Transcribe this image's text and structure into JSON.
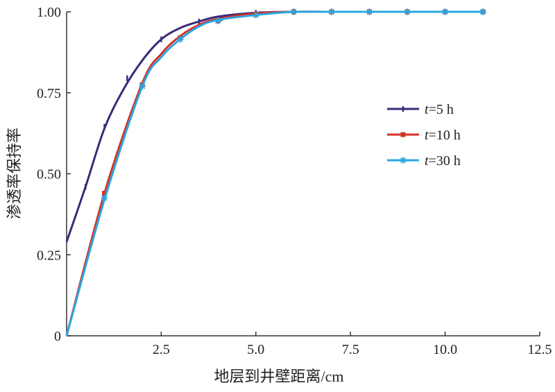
{
  "chart_data": {
    "type": "line",
    "title": "",
    "xlabel": "地层到井壁距离/cm",
    "ylabel": "渗透率保持率",
    "xlim": [
      0,
      12.5
    ],
    "ylim": [
      0,
      1.0
    ],
    "x_ticks": [
      "2.5",
      "5.0",
      "7.5",
      "10.0",
      "12.5"
    ],
    "y_ticks": [
      "0",
      "0.25",
      "0.50",
      "0.75",
      "1.00"
    ],
    "grid": false,
    "legend_position": "center-right",
    "series": [
      {
        "name_prefix": "t",
        "name_value": "=5 h",
        "color": "#3b2a7a",
        "marker": "tick",
        "x": [
          0,
          0.5,
          1.0,
          1.5,
          2.0,
          2.5,
          3.0,
          3.5,
          4.0,
          5.0,
          6.0
        ],
        "y": [
          0.29,
          0.46,
          0.64,
          0.76,
          0.85,
          0.915,
          0.95,
          0.97,
          0.985,
          0.997,
          1.0
        ],
        "markers_x": [
          0.5,
          1.0,
          1.6,
          2.5,
          3.5,
          4.1,
          5.0,
          6.0
        ],
        "markers_y": [
          0.46,
          0.645,
          0.795,
          0.915,
          0.97,
          0.98,
          0.997,
          1.0
        ]
      },
      {
        "name_prefix": "t",
        "name_value": "=10 h",
        "color": "#d73027",
        "marker": "square",
        "x": [
          0,
          1.0,
          2.0,
          2.5,
          3.0,
          3.5,
          4.0,
          5.0,
          6.0,
          7.0,
          8.0,
          9.0,
          10.0,
          11.0
        ],
        "y": [
          0.0,
          0.44,
          0.78,
          0.87,
          0.925,
          0.96,
          0.978,
          0.995,
          1.0,
          1.0,
          1.0,
          1.0,
          1.0,
          1.0
        ],
        "markers_x": [
          1.0,
          2.0,
          3.0,
          4.0,
          5.0,
          6.0,
          7.0,
          8.0,
          9.0,
          10.0,
          11.0
        ],
        "markers_y": [
          0.44,
          0.775,
          0.92,
          0.972,
          0.992,
          1.0,
          1.0,
          1.0,
          1.0,
          1.0,
          1.0
        ]
      },
      {
        "name_prefix": "t",
        "name_value": "=30 h",
        "color": "#2ba6e0",
        "marker": "star",
        "x": [
          0,
          1.0,
          2.0,
          2.5,
          3.0,
          3.5,
          4.0,
          5.0,
          6.0,
          7.0,
          8.0,
          9.0,
          10.0,
          11.0
        ],
        "y": [
          0.0,
          0.42,
          0.77,
          0.86,
          0.915,
          0.955,
          0.975,
          0.99,
          1.0,
          1.0,
          1.0,
          1.0,
          1.0,
          1.0
        ],
        "markers_x": [
          1.0,
          2.0,
          3.0,
          4.0,
          5.0,
          6.0,
          7.0,
          8.0,
          9.0,
          10.0,
          11.0
        ],
        "markers_y": [
          0.425,
          0.77,
          0.915,
          0.972,
          0.99,
          1.0,
          1.0,
          1.0,
          1.0,
          1.0,
          1.0
        ]
      }
    ]
  }
}
